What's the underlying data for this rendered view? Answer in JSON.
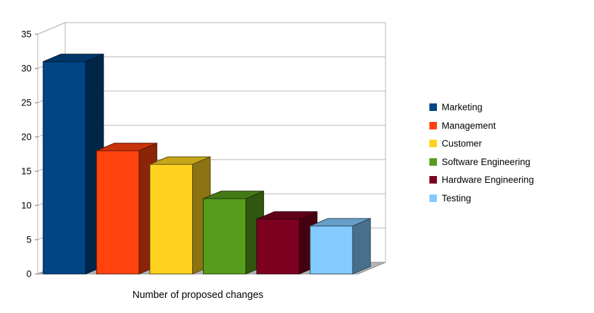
{
  "chart_data": {
    "type": "bar",
    "style": "3d",
    "title": "Number of proposed changes",
    "xlabel": "",
    "ylabel": "",
    "categories": [
      "Marketing",
      "Management",
      "Customer",
      "Software Engineering",
      "Hardware Engineering",
      "Testing"
    ],
    "values": [
      31,
      18,
      16,
      11,
      8,
      7
    ],
    "colors": [
      "#004586",
      "#ff420e",
      "#ffd320",
      "#579d1c",
      "#7e0021",
      "#83caff"
    ],
    "ylim": [
      0,
      35
    ],
    "ytick_step": 5,
    "y_ticks": [
      0,
      5,
      10,
      15,
      20,
      25,
      30,
      35
    ],
    "grid": true,
    "legend_position": "right",
    "grid_color": "#b3b3b3",
    "floor_color": "#b3b3b3",
    "wall_color": "#ffffff",
    "text_color": "#000000"
  }
}
